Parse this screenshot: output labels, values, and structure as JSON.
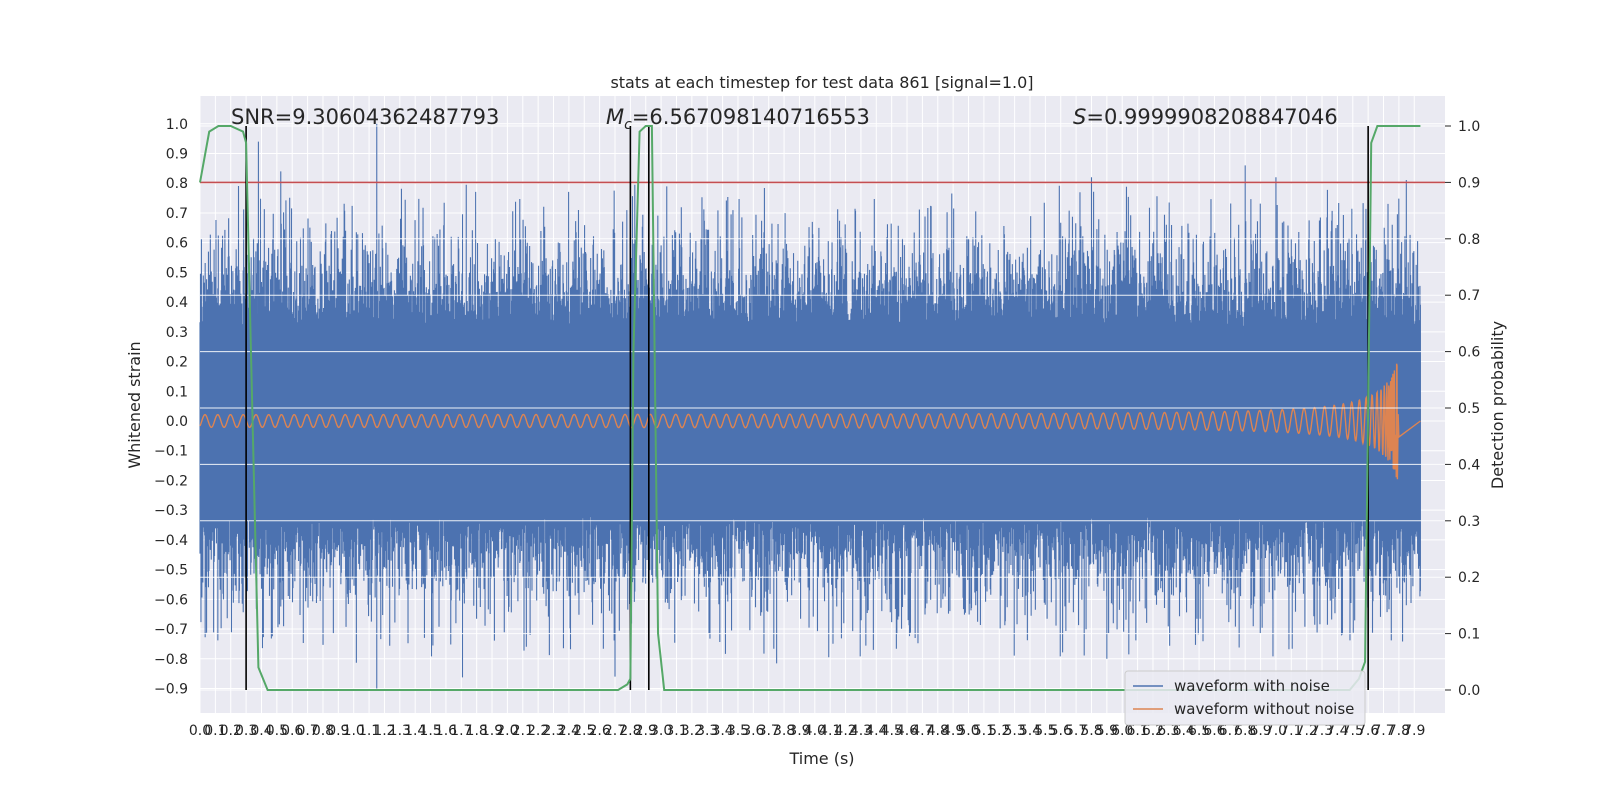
{
  "chart_data": {
    "type": "line",
    "title": "stats at each timestep for test data 861 [signal=1.0]",
    "xlabel": "Time (s)",
    "ylabel": "Whitened strain",
    "y2label": "Detection probability",
    "xlim": [
      0.0,
      8.0
    ],
    "ylim": [
      -1.0,
      1.05
    ],
    "y2lim": [
      -0.05,
      1.05
    ],
    "x_ticks": [
      "0.0",
      "0.1",
      "0.2",
      "0.3",
      "0.4",
      "0.5",
      "0.6",
      "0.7",
      "0.8",
      "0.9",
      "1.0",
      "1.1",
      "1.2",
      "1.3",
      "1.4",
      "1.5",
      "1.6",
      "1.7",
      "1.8",
      "1.9",
      "2.0",
      "2.1",
      "2.2",
      "2.3",
      "2.4",
      "2.5",
      "2.6",
      "2.7",
      "2.8",
      "2.9",
      "3.0",
      "3.1",
      "3.2",
      "3.3",
      "3.4",
      "3.5",
      "3.6",
      "3.7",
      "3.8",
      "3.9",
      "4.0",
      "4.1",
      "4.2",
      "4.3",
      "4.4",
      "4.5",
      "4.6",
      "4.7",
      "4.8",
      "4.9",
      "5.0",
      "5.1",
      "5.2",
      "5.3",
      "5.4",
      "5.5",
      "5.6",
      "5.7",
      "5.8",
      "5.9",
      "6.0",
      "6.1",
      "6.2",
      "6.3",
      "6.4",
      "6.5",
      "6.6",
      "6.7",
      "6.8",
      "6.9",
      "7.0",
      "7.1",
      "7.2",
      "7.3",
      "7.4",
      "7.5",
      "7.6",
      "7.7",
      "7.8",
      "7.9"
    ],
    "y_ticks": [
      "−0.9",
      "−0.8",
      "−0.7",
      "−0.6",
      "−0.5",
      "−0.4",
      "−0.3",
      "−0.2",
      "−0.1",
      "0.0",
      "0.1",
      "0.2",
      "0.3",
      "0.4",
      "0.5",
      "0.6",
      "0.7",
      "0.8",
      "0.9",
      "1.0"
    ],
    "y2_ticks": [
      "0.0",
      "0.1",
      "0.2",
      "0.3",
      "0.4",
      "0.5",
      "0.6",
      "0.7",
      "0.8",
      "0.9",
      "1.0"
    ],
    "grid": true,
    "legend_position": "bottom-right",
    "annotations": {
      "snr": "SNR=9.30604362487793",
      "mc_symbol": "M",
      "mc_sub": "c",
      "mc_value": "=6.567098140716553",
      "s_symbol": "S",
      "s_value": "=0.9999908208847046"
    },
    "threshold_line": {
      "y2": 0.9,
      "color": "#c44e52"
    },
    "vertical_markers_x": [
      0.3,
      2.8,
      2.92,
      7.6
    ],
    "series": [
      {
        "name": "waveform with noise",
        "color": "#4c72b0",
        "envelope_core": 0.32,
        "peak_max": 1.0,
        "peak_min": -0.9
      },
      {
        "name": "waveform without noise",
        "color": "#dd8452",
        "chirp_start_amp": 0.02,
        "chirp_peak_amp": 0.22,
        "merger_time": 7.8
      },
      {
        "name": "detection probability",
        "color": "#55a868",
        "x": [
          0.0,
          0.06,
          0.12,
          0.2,
          0.28,
          0.3,
          0.34,
          0.38,
          0.44,
          0.5,
          1.0,
          2.0,
          2.72,
          2.78,
          2.8,
          2.82,
          2.86,
          2.9,
          2.94,
          2.98,
          3.02,
          3.1,
          3.5,
          5.0,
          7.0,
          7.48,
          7.54,
          7.58,
          7.6,
          7.62,
          7.66,
          7.7,
          7.8,
          7.94
        ],
        "y": [
          0.9,
          0.99,
          1.0,
          1.0,
          0.99,
          0.97,
          0.5,
          0.04,
          0.0,
          0.0,
          0.0,
          0.0,
          0.0,
          0.01,
          0.02,
          0.6,
          0.99,
          1.0,
          1.0,
          0.1,
          0.0,
          0.0,
          0.0,
          0.0,
          0.0,
          0.0,
          0.02,
          0.05,
          0.5,
          0.97,
          1.0,
          1.0,
          1.0,
          1.0
        ]
      }
    ]
  }
}
